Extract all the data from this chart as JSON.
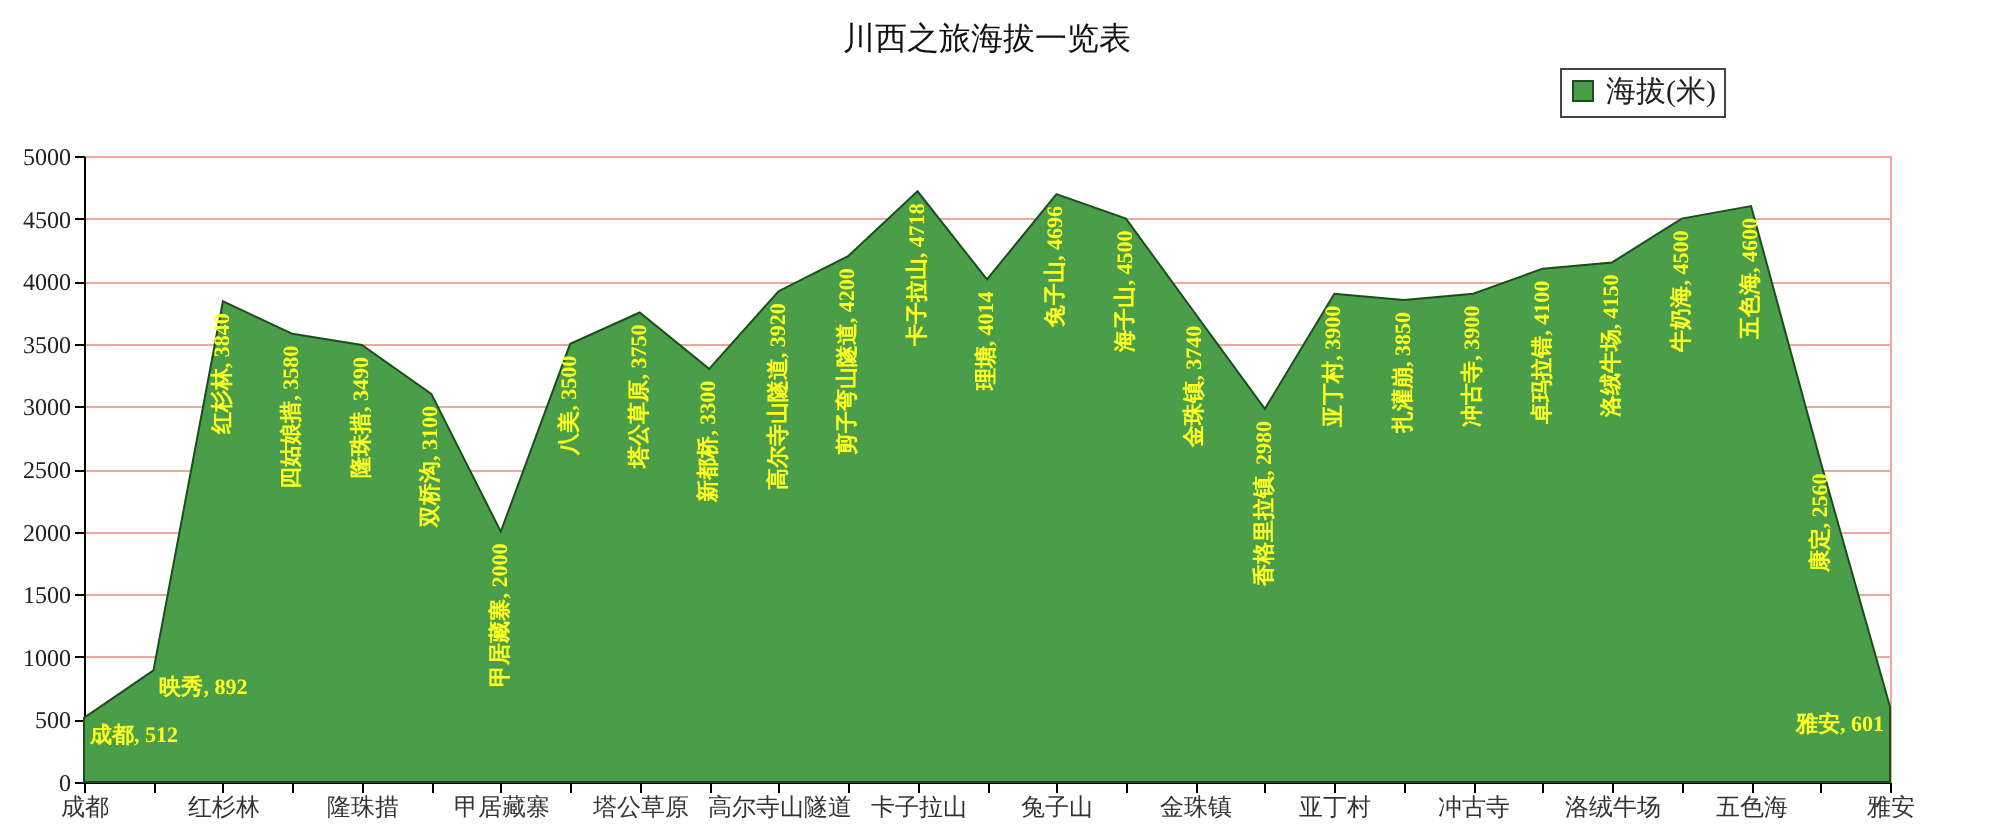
{
  "chart_data": {
    "type": "area",
    "title": "川西之旅海拔一览表",
    "categories": [
      "成都",
      null,
      "红杉林",
      null,
      "隆珠措",
      null,
      "甲居藏寨",
      null,
      "塔公草原",
      null,
      "高尔寺山隧道",
      null,
      "卡子拉山",
      null,
      "兔子山",
      null,
      "金珠镇",
      null,
      "亚丁村",
      null,
      "冲古寺",
      null,
      "洛绒牛场",
      null,
      "五色海",
      null,
      "雅安"
    ],
    "series": [
      {
        "name": "海拔(米)",
        "color": "#4a9e4a",
        "values": [
          512,
          892,
          3840,
          3580,
          3490,
          3100,
          2000,
          3500,
          3750,
          3300,
          3920,
          4200,
          4718,
          4014,
          4696,
          4500,
          3740,
          2980,
          3900,
          3850,
          3900,
          4100,
          4150,
          4500,
          4600,
          2560,
          601
        ],
        "value_labels": [
          "成都, 512",
          "映秀, 892",
          "红杉林, 3840",
          "四姑娘措, 3580",
          "隆珠措, 3490",
          "双桥沟, 3100",
          "甲居藏寨, 2000",
          "八美, 3500",
          "塔公草原, 3750",
          "新都桥, 3300",
          "高尔寺山隧道, 3920",
          "剪子弯山隧道, 4200",
          "卡子拉山, 4718",
          "理塘, 4014",
          "兔子山, 4696",
          "海子山, 4500",
          "金珠镇, 3740",
          "香格里拉镇, 2980",
          "亚丁村, 3900",
          "扎灌崩, 3850",
          "冲古寺, 3900",
          "卓玛拉错, 4100",
          "洛绒牛场, 4150",
          "牛奶海, 4500",
          "五色海, 4600",
          "康定, 2560",
          "雅安, 601"
        ]
      }
    ],
    "ylim": [
      0,
      5000
    ],
    "yticks": [
      0,
      500,
      1000,
      1500,
      2000,
      2500,
      3000,
      3500,
      4000,
      4500,
      5000
    ],
    "grid": "y",
    "legend": "top right"
  }
}
